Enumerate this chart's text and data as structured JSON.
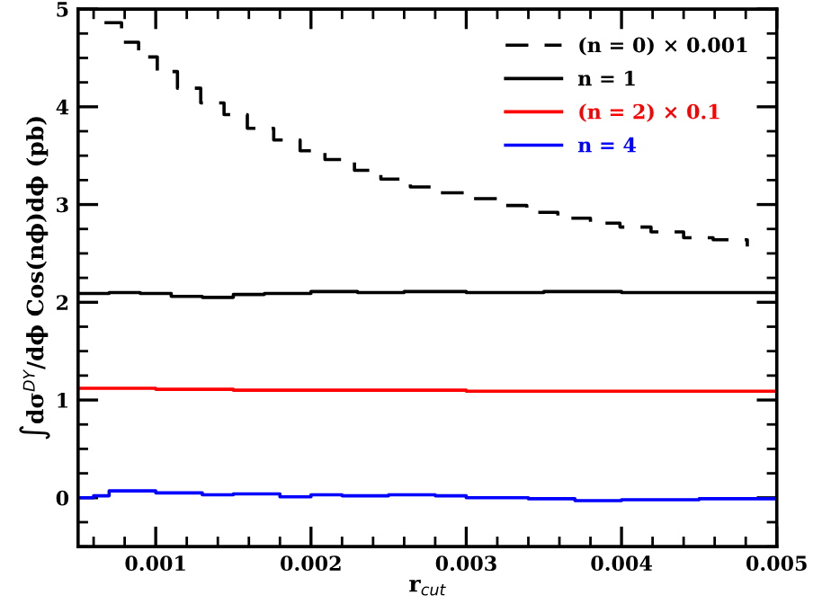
{
  "chart_data": {
    "type": "step",
    "xlabel": "r$_{cut}$",
    "ylabel": "∫dσ$^{DY}$/dϕ Cos(nϕ)dϕ (pb)",
    "xlim": [
      0.0005,
      0.005
    ],
    "ylim": [
      -0.5,
      5
    ],
    "xticks": [
      0.001,
      0.002,
      0.003,
      0.004,
      0.005
    ],
    "yticks": [
      0,
      1,
      2,
      3,
      4,
      5
    ],
    "grid": false,
    "legend": "top right",
    "marker": "none",
    "series": [
      {
        "name": "(n = 0) × 0.001",
        "color": "#000000",
        "line_style": "dashed",
        "x": [
          0.00067,
          0.00078,
          0.00089,
          0.00101,
          0.00114,
          0.00129,
          0.00144,
          0.00159,
          0.00176,
          0.00193,
          0.00209,
          0.00228,
          0.00245,
          0.00264,
          0.00283,
          0.00301,
          0.0032,
          0.00339,
          0.00359,
          0.0038,
          0.00399,
          0.00419,
          0.0044,
          0.00459,
          0.00481
        ],
        "values": [
          4.86,
          4.66,
          4.51,
          4.36,
          4.19,
          4.04,
          3.92,
          3.78,
          3.66,
          3.55,
          3.46,
          3.35,
          3.26,
          3.18,
          3.12,
          3.06,
          2.99,
          2.92,
          2.86,
          2.81,
          2.77,
          2.72,
          2.66,
          2.64,
          2.57
        ]
      },
      {
        "name": "n = 1",
        "color": "#000000",
        "line_style": "solid",
        "x": [
          0.0005,
          0.0007,
          0.0009,
          0.0011,
          0.0013,
          0.0015,
          0.0017,
          0.002,
          0.0023,
          0.0026,
          0.003,
          0.0035,
          0.004,
          0.0045,
          0.005
        ],
        "values": [
          2.09,
          2.1,
          2.09,
          2.06,
          2.05,
          2.08,
          2.09,
          2.11,
          2.1,
          2.11,
          2.1,
          2.11,
          2.1,
          2.1,
          2.09
        ]
      },
      {
        "name": "(n = 2) × 0.1",
        "color": "#ff0000",
        "line_style": "solid",
        "x": [
          0.0005,
          0.001,
          0.0015,
          0.002,
          0.0025,
          0.003,
          0.0035,
          0.004,
          0.0045,
          0.005
        ],
        "values": [
          1.12,
          1.11,
          1.1,
          1.1,
          1.1,
          1.09,
          1.09,
          1.09,
          1.09,
          1.09
        ]
      },
      {
        "name": "n = 4",
        "color": "#0000ff",
        "line_style": "solid",
        "x": [
          0.0005,
          0.0006,
          0.0007,
          0.001,
          0.0013,
          0.0015,
          0.0018,
          0.002,
          0.0022,
          0.0025,
          0.0028,
          0.003,
          0.0034,
          0.0037,
          0.004,
          0.0045,
          0.005
        ],
        "values": [
          0.0,
          0.02,
          0.07,
          0.05,
          0.03,
          0.04,
          0.01,
          0.03,
          0.02,
          0.03,
          0.02,
          0.0,
          -0.01,
          -0.03,
          -0.02,
          -0.01,
          0.0
        ]
      }
    ]
  }
}
